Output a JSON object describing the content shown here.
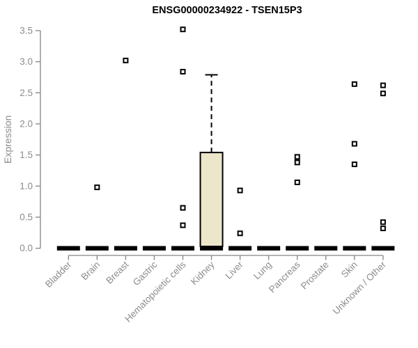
{
  "colors": {
    "background": "#ffffff",
    "title_text": "#000000",
    "axis_line": "#848484",
    "axis_text": "#8c8c8c",
    "box_fill": "#ece6cb",
    "box_stroke": "#000000",
    "median_color": "#000000",
    "point_stroke": "#000000",
    "point_fill": "#ffffff"
  },
  "chart_data": {
    "type": "boxplot",
    "title": "ENSG00000234922 - TSEN15P3",
    "xlabel": "",
    "ylabel": "Expression",
    "ylim": [
      0,
      3.5
    ],
    "ytick_step": 0.5,
    "yticks": [
      "0.0",
      "0.5",
      "1.0",
      "1.5",
      "2.0",
      "2.5",
      "3.0",
      "3.5"
    ],
    "grid": false,
    "legend": "none",
    "categories": [
      "Bladder",
      "Brain",
      "Breast",
      "Gastric",
      "Hematopoietic cells",
      "Kidney",
      "Liver",
      "Lung",
      "Pancreas",
      "Prostate",
      "Skin",
      "Unknown / Other"
    ],
    "series": [
      {
        "category": "Bladder",
        "median": 0,
        "q1": 0,
        "q3": 0,
        "whisker_low": 0,
        "whisker_high": 0,
        "outliers": []
      },
      {
        "category": "Brain",
        "median": 0,
        "q1": 0,
        "q3": 0,
        "whisker_low": 0,
        "whisker_high": 0,
        "outliers": [
          0.98
        ]
      },
      {
        "category": "Breast",
        "median": 0,
        "q1": 0,
        "q3": 0,
        "whisker_low": 0,
        "whisker_high": 0,
        "outliers": [
          3.02
        ]
      },
      {
        "category": "Gastric",
        "median": 0,
        "q1": 0,
        "q3": 0,
        "whisker_low": 0,
        "whisker_high": 0,
        "outliers": []
      },
      {
        "category": "Hematopoietic cells",
        "median": 0,
        "q1": 0,
        "q3": 0,
        "whisker_low": 0,
        "whisker_high": 0,
        "outliers": [
          3.52,
          2.84,
          0.65,
          0.37
        ]
      },
      {
        "category": "Kidney",
        "median": 0,
        "q1": 0.03,
        "q3": 1.54,
        "whisker_low": 0,
        "whisker_high": 2.79,
        "outliers": []
      },
      {
        "category": "Liver",
        "median": 0,
        "q1": 0,
        "q3": 0,
        "whisker_low": 0,
        "whisker_high": 0,
        "outliers": [
          0.93,
          0.24
        ]
      },
      {
        "category": "Lung",
        "median": 0,
        "q1": 0,
        "q3": 0,
        "whisker_low": 0,
        "whisker_high": 0,
        "outliers": []
      },
      {
        "category": "Pancreas",
        "median": 0,
        "q1": 0,
        "q3": 0,
        "whisker_low": 0,
        "whisker_high": 0,
        "outliers": [
          1.47,
          1.38,
          1.06
        ]
      },
      {
        "category": "Prostate",
        "median": 0,
        "q1": 0,
        "q3": 0,
        "whisker_low": 0,
        "whisker_high": 0,
        "outliers": []
      },
      {
        "category": "Skin",
        "median": 0,
        "q1": 0,
        "q3": 0,
        "whisker_low": 0,
        "whisker_high": 0,
        "outliers": [
          2.64,
          1.68,
          1.35
        ]
      },
      {
        "category": "Unknown / Other",
        "median": 0,
        "q1": 0,
        "q3": 0,
        "whisker_low": 0,
        "whisker_high": 0,
        "outliers": [
          2.62,
          2.49,
          0.42,
          0.32
        ]
      }
    ]
  }
}
